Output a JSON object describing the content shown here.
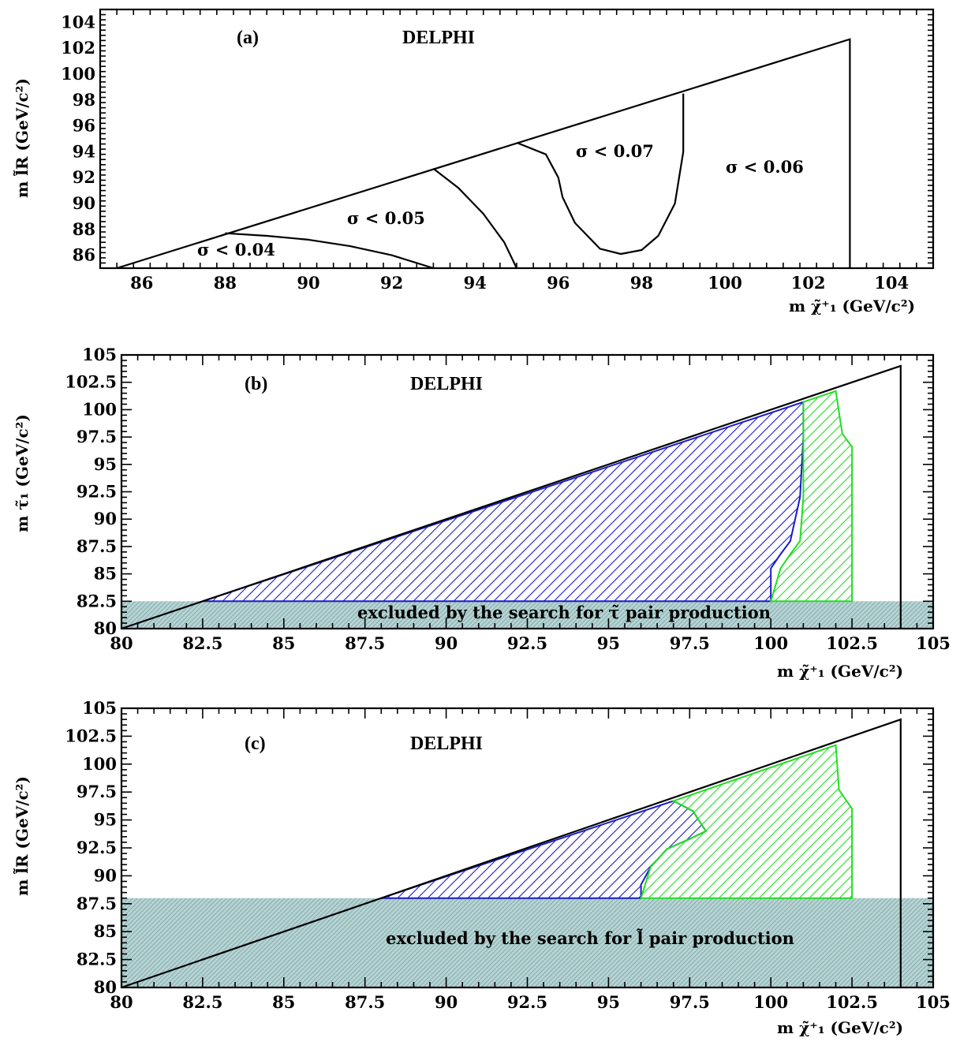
{
  "chart_data": [
    {
      "panel": "(a)",
      "type": "line",
      "title": "DELPHI",
      "panel_label": "(a)",
      "xlabel": "m χ̃⁺₁ (GeV/c²)",
      "ylabel": "m l̃R (GeV/c²)",
      "xlim": [
        85,
        105
      ],
      "ylim": [
        85,
        105
      ],
      "xticks": [
        "86",
        "88",
        "90",
        "92",
        "94",
        "96",
        "98",
        "100",
        "102",
        "104"
      ],
      "yticks": [
        "86",
        "88",
        "90",
        "92",
        "94",
        "96",
        "98",
        "100",
        "102",
        "104"
      ],
      "boundary": {
        "x": [
          85.4,
          103,
          103
        ],
        "y": [
          85,
          102.7,
          85
        ]
      },
      "contours": [
        {
          "name": "σ < 0.04 / σ < 0.05",
          "x": [
            88,
            89,
            90,
            91,
            92,
            93
          ],
          "y": [
            87.7,
            87.5,
            87.2,
            86.7,
            86.0,
            85.0
          ]
        },
        {
          "name": "σ < 0.05 / σ < 0.07",
          "x": [
            93,
            93.6,
            94.2,
            94.7,
            95.0
          ],
          "y": [
            92.7,
            91.2,
            89.2,
            87.0,
            85.0
          ]
        },
        {
          "name": "σ < 0.07 island",
          "x": [
            95.0,
            95.7,
            96.0,
            96.1,
            96.4,
            97.0,
            97.5,
            98.0,
            98.4,
            98.8,
            99.0,
            99.0
          ],
          "y": [
            94.7,
            93.8,
            92.0,
            90.5,
            88.5,
            86.5,
            86.1,
            86.4,
            87.5,
            90.0,
            94.0,
            98.5
          ]
        }
      ],
      "annotations": [
        "σ  < 0.04",
        "σ  < 0.05",
        "σ  < 0.07",
        "σ  < 0.06"
      ]
    },
    {
      "panel": "(b)",
      "type": "area",
      "title": "DELPHI",
      "panel_label": "(b)",
      "xlabel": "m χ̃⁺₁ (GeV/c²)",
      "ylabel": "m τ̃₁ (GeV/c²)",
      "xlim": [
        80,
        105
      ],
      "ylim": [
        80,
        105
      ],
      "xticks": [
        "80",
        "82.5",
        "85",
        "87.5",
        "90",
        "92.5",
        "95",
        "97.5",
        "100",
        "102.5",
        "105"
      ],
      "yticks": [
        "80",
        "82.5",
        "85",
        "87.5",
        "90",
        "92.5",
        "95",
        "97.5",
        "100",
        "102.5",
        "105"
      ],
      "boundary": {
        "x": [
          80,
          104,
          104
        ],
        "y": [
          80,
          104,
          80
        ]
      },
      "excluded_band": {
        "ymax": 82.5,
        "label": "excluded by the search for  τ̃  pair production"
      },
      "regions": [
        {
          "name": "blue",
          "color": "#1a1acc",
          "x": [
            82.5,
            101,
            101,
            100.9,
            100.6,
            100.3,
            100.0,
            100.0
          ],
          "y": [
            82.5,
            100.7,
            97.5,
            92.0,
            88.0,
            86.8,
            85.5,
            82.5
          ]
        },
        {
          "name": "green",
          "color": "#22dd22",
          "x": [
            100.0,
            100.3,
            100.6,
            100.9,
            101.0,
            101.0,
            102.0,
            102.2,
            102.5,
            102.5
          ],
          "y": [
            82.5,
            85.5,
            86.8,
            88.0,
            92.0,
            100.7,
            101.7,
            97.8,
            96.6,
            82.5
          ]
        }
      ]
    },
    {
      "panel": "(c)",
      "type": "area",
      "title": "DELPHI",
      "panel_label": "(c)",
      "xlabel": "m χ̃⁺₁ (GeV/c²)",
      "ylabel": "m l̃R (GeV/c²)",
      "xlim": [
        80,
        105
      ],
      "ylim": [
        80,
        105
      ],
      "xticks": [
        "80",
        "82.5",
        "85",
        "87.5",
        "90",
        "92.5",
        "95",
        "97.5",
        "100",
        "102.5",
        "105"
      ],
      "yticks": [
        "80",
        "82.5",
        "85",
        "87.5",
        "90",
        "92.5",
        "95",
        "97.5",
        "100",
        "102.5",
        "105"
      ],
      "boundary": {
        "x": [
          80,
          104,
          104
        ],
        "y": [
          80,
          104,
          80
        ]
      },
      "excluded_band": {
        "ymax": 88,
        "label": "excluded by the search for  l̃ pair production"
      },
      "regions": [
        {
          "name": "blue",
          "color": "#1a1acc",
          "x": [
            88,
            97,
            97.6,
            98.0,
            97.5,
            96.8,
            96.3,
            96.0,
            96.0
          ],
          "y": [
            88,
            96.7,
            95.8,
            94.0,
            93.3,
            92.4,
            90.8,
            89.2,
            88
          ]
        },
        {
          "name": "green",
          "color": "#22dd22",
          "x": [
            96.0,
            96.3,
            96.8,
            97.5,
            98.0,
            97.6,
            97.0,
            102.0,
            102.1,
            102.5,
            102.5
          ],
          "y": [
            88,
            90.8,
            92.4,
            93.3,
            94.0,
            95.8,
            96.7,
            101.7,
            97.7,
            96.0,
            88
          ]
        }
      ]
    }
  ]
}
